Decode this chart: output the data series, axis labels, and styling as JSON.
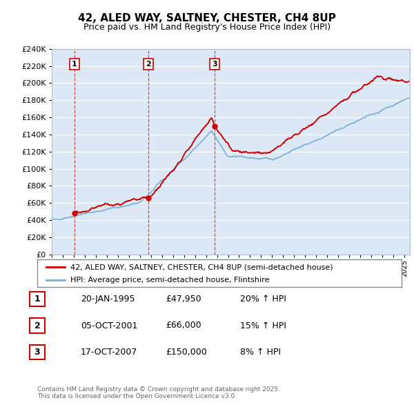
{
  "title": "42, ALED WAY, SALTNEY, CHESTER, CH4 8UP",
  "subtitle": "Price paid vs. HM Land Registry's House Price Index (HPI)",
  "ylim": [
    0,
    240000
  ],
  "yticks": [
    0,
    20000,
    40000,
    60000,
    80000,
    100000,
    120000,
    140000,
    160000,
    180000,
    200000,
    220000,
    240000
  ],
  "xlim_start": 1993,
  "xlim_end": 2025.5,
  "background_color": "#dce8f5",
  "grid_color": "#ffffff",
  "purchases": [
    {
      "date_num": 1995.05,
      "price": 47950,
      "label": "1"
    },
    {
      "date_num": 2001.76,
      "price": 66000,
      "label": "2"
    },
    {
      "date_num": 2007.79,
      "price": 150000,
      "label": "3"
    }
  ],
  "vline_dates": [
    1995.05,
    2001.76,
    2007.79
  ],
  "legend_entry1": "42, ALED WAY, SALTNEY, CHESTER, CH4 8UP (semi-detached house)",
  "legend_entry2": "HPI: Average price, semi-detached house, Flintshire",
  "table_rows": [
    {
      "num": "1",
      "date": "20-JAN-1995",
      "price": "£47,950",
      "change": "20% ↑ HPI"
    },
    {
      "num": "2",
      "date": "05-OCT-2001",
      "price": "£66,000",
      "change": "15% ↑ HPI"
    },
    {
      "num": "3",
      "date": "17-OCT-2007",
      "price": "£150,000",
      "change": "8% ↑ HPI"
    }
  ],
  "footer": "Contains HM Land Registry data © Crown copyright and database right 2025.\nThis data is licensed under the Open Government Licence v3.0.",
  "red_color": "#cc0000",
  "blue_color": "#7ab0d4",
  "label_box_color": "#cc0000"
}
